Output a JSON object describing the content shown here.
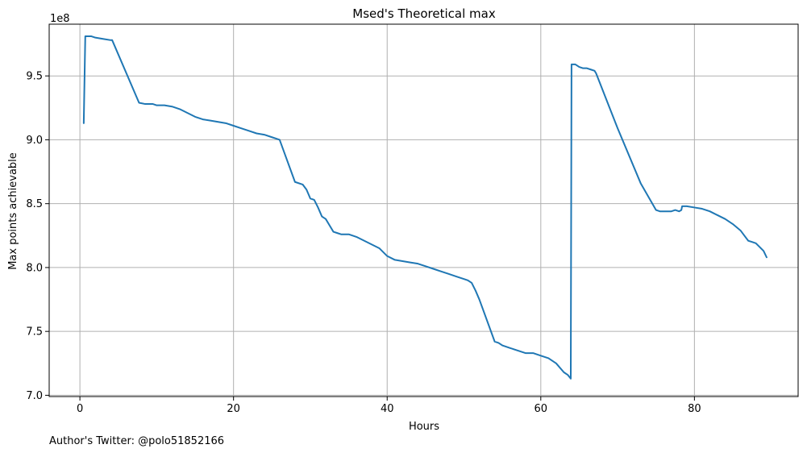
{
  "chart_data": {
    "type": "line",
    "title": "Msed's Theoretical max",
    "xlabel": "Hours",
    "ylabel": "Max points achievable",
    "y_offset_label": "1e8",
    "footnote": "Author's Twitter: @polo51852166",
    "xlim": [
      -4,
      93.5
    ],
    "ylim": [
      6.99,
      9.905
    ],
    "x_ticks": [
      0,
      20,
      40,
      60,
      80
    ],
    "x_tick_labels": [
      "0",
      "20",
      "40",
      "60",
      "80"
    ],
    "y_ticks": [
      7.0,
      7.5,
      8.0,
      8.5,
      9.0,
      9.5
    ],
    "y_tick_labels": [
      "7.0",
      "7.5",
      "8.0",
      "8.5",
      "9.0",
      "9.5"
    ],
    "grid": true,
    "colors": {
      "line": "#1f77b4",
      "grid": "#b0b0b0",
      "axes": "#000000"
    },
    "series": [
      {
        "x": [
          0.5,
          0.7,
          1.5,
          2.0,
          3.0,
          4.0,
          4.2,
          7.7,
          8.5,
          9.5,
          10.0,
          11.0,
          12.0,
          13.0,
          14.0,
          15.0,
          16.0,
          17.0,
          18.0,
          19.0,
          20.0,
          21.0,
          22.0,
          23.0,
          24.0,
          25.0,
          25.5,
          26.0,
          28.0,
          29.0,
          29.5,
          30.0,
          30.5,
          31.0,
          31.5,
          32.0,
          32.5,
          33.0,
          33.5,
          34.0,
          35.0,
          36.0,
          37.0,
          38.0,
          39.0,
          40.0,
          41.0,
          42.0,
          43.0,
          44.0,
          45.0,
          46.0,
          47.0,
          48.0,
          49.0,
          50.0,
          50.5,
          51.0,
          51.5,
          52.0,
          54.0,
          54.5,
          55.0,
          56.0,
          57.0,
          58.0,
          59.0,
          60.0,
          61.0,
          62.0,
          63.0,
          63.5,
          63.9,
          64.0,
          64.5,
          65.0,
          65.5,
          66.0,
          66.5,
          67.0,
          67.2,
          70.0,
          73.0,
          75.0,
          75.5,
          76.0,
          77.0,
          77.5,
          78.0,
          78.3,
          78.4,
          79.0,
          80.0,
          81.0,
          82.0,
          83.0,
          84.0,
          85.0,
          86.0,
          86.5,
          87.0,
          87.5,
          88.0,
          88.5,
          89.0,
          89.4
        ],
        "y": [
          9.13,
          9.81,
          9.81,
          9.8,
          9.79,
          9.78,
          9.78,
          9.29,
          9.28,
          9.28,
          9.27,
          9.27,
          9.26,
          9.24,
          9.21,
          9.18,
          9.16,
          9.15,
          9.14,
          9.13,
          9.11,
          9.09,
          9.07,
          9.05,
          9.04,
          9.02,
          9.01,
          9.0,
          8.67,
          8.65,
          8.61,
          8.54,
          8.53,
          8.47,
          8.4,
          8.38,
          8.33,
          8.28,
          8.27,
          8.26,
          8.26,
          8.24,
          8.21,
          8.18,
          8.15,
          8.09,
          8.06,
          8.05,
          8.04,
          8.03,
          8.01,
          7.99,
          7.97,
          7.95,
          7.93,
          7.91,
          7.9,
          7.88,
          7.82,
          7.75,
          7.42,
          7.41,
          7.39,
          7.37,
          7.35,
          7.33,
          7.33,
          7.31,
          7.29,
          7.25,
          7.18,
          7.16,
          7.13,
          9.59,
          9.59,
          9.57,
          9.56,
          9.56,
          9.55,
          9.54,
          9.52,
          9.09,
          8.66,
          8.45,
          8.44,
          8.44,
          8.44,
          8.45,
          8.44,
          8.45,
          8.48,
          8.48,
          8.47,
          8.46,
          8.44,
          8.41,
          8.38,
          8.34,
          8.29,
          8.25,
          8.21,
          8.2,
          8.19,
          8.16,
          8.13,
          8.08
        ]
      }
    ]
  }
}
